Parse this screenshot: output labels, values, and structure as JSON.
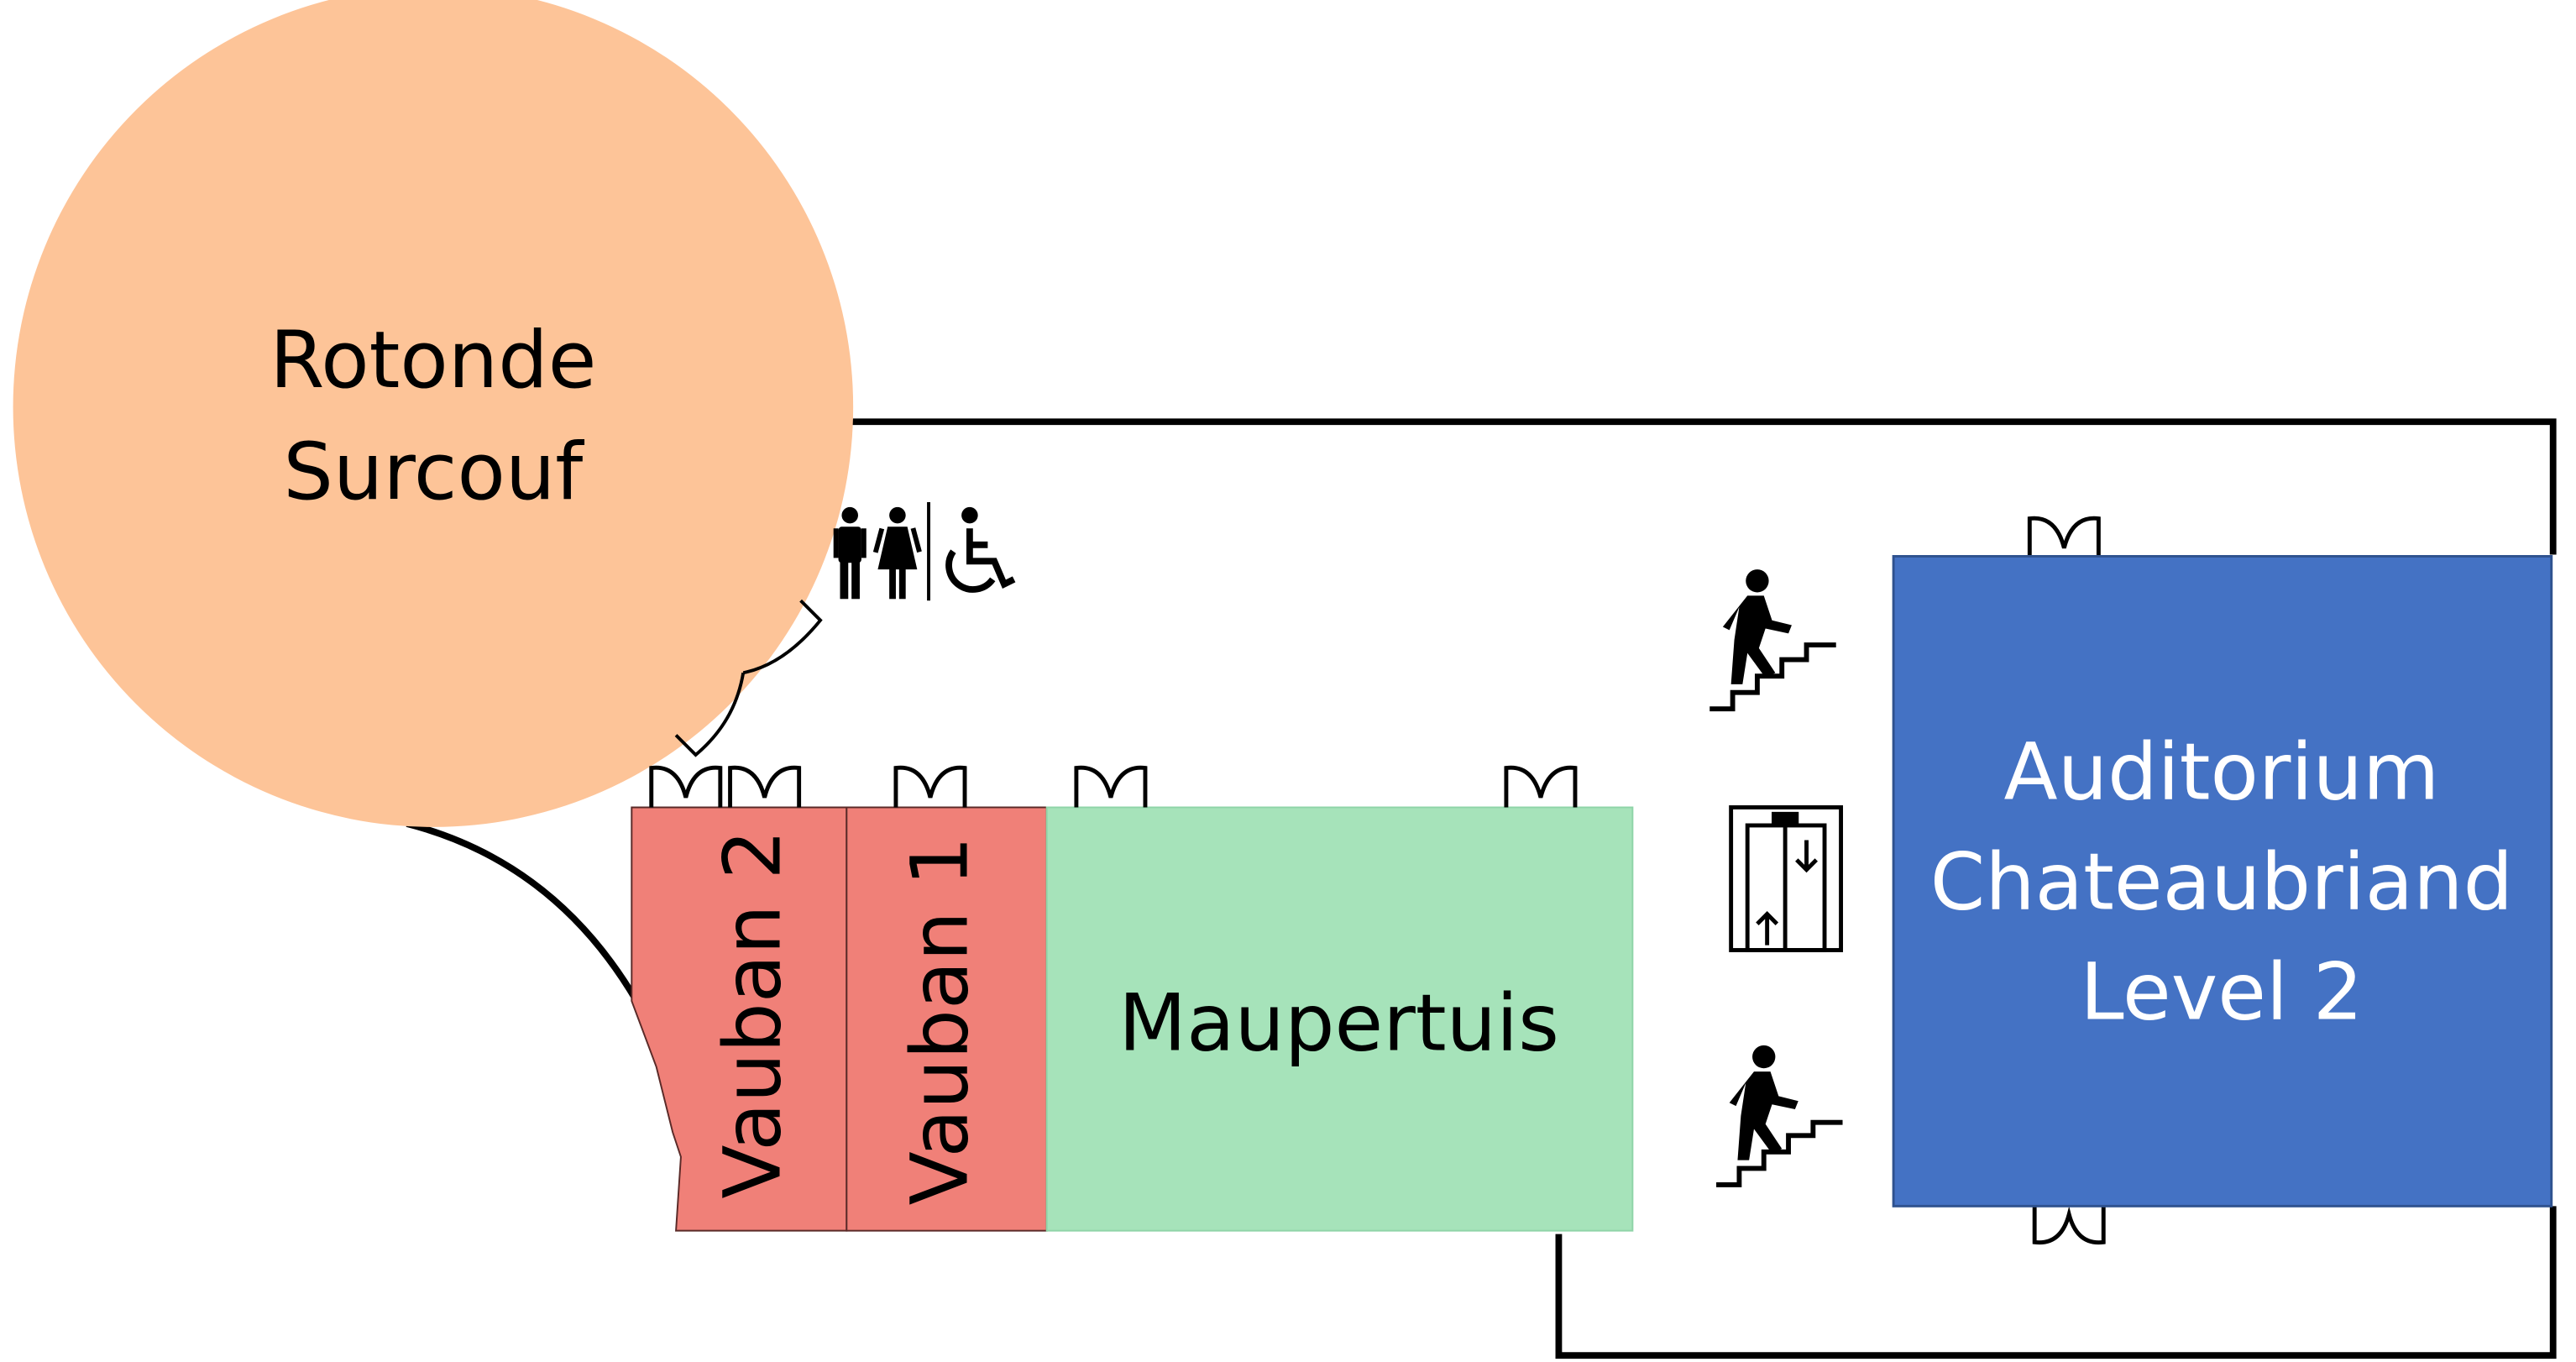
{
  "colors": {
    "rotonde": "#fdc498",
    "vauban": "#f08078",
    "maupertuis": "#a6e3ba",
    "auditorium": "#4472c4",
    "wall": "#000000"
  },
  "rooms": {
    "rotonde": {
      "lines": [
        "Rotonde",
        "Surcouf"
      ]
    },
    "vauban2": {
      "label": "Vauban 2"
    },
    "vauban1": {
      "label": "Vauban 1"
    },
    "maupertuis": {
      "label": "Maupertuis"
    },
    "auditorium": {
      "lines": [
        "Auditorium",
        "Chateaubriand",
        "Level 2"
      ]
    }
  },
  "icons": [
    "restroom-men-icon",
    "restroom-women-icon",
    "wheelchair-accessible-icon",
    "stairs-up-icon",
    "elevator-icon",
    "door-icon"
  ]
}
